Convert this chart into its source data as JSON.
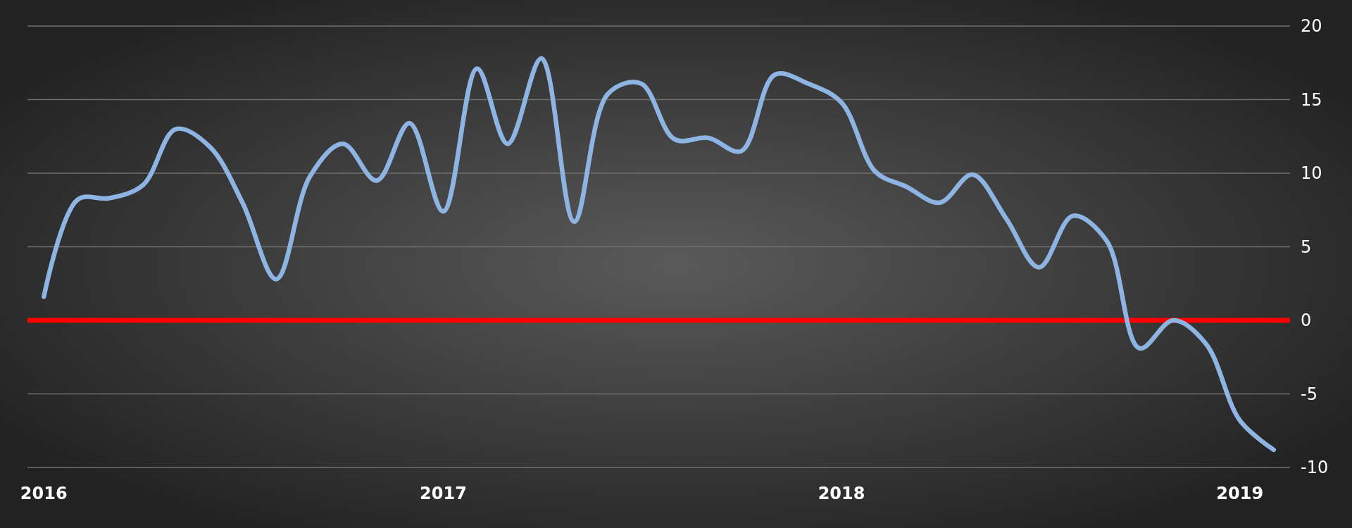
{
  "chart_data": {
    "type": "line",
    "x": [
      "2016-01",
      "2016-02",
      "2016-03",
      "2016-04",
      "2016-05",
      "2016-06",
      "2016-07",
      "2016-08",
      "2016-09",
      "2016-10",
      "2016-11",
      "2016-12",
      "2017-01",
      "2017-02",
      "2017-03",
      "2017-04",
      "2017-05",
      "2017-06",
      "2017-07",
      "2017-08",
      "2017-09",
      "2017-10",
      "2017-11",
      "2017-12",
      "2018-01",
      "2018-02",
      "2018-03",
      "2018-04",
      "2018-05",
      "2018-06",
      "2018-07",
      "2018-08",
      "2018-09",
      "2018-10",
      "2018-11",
      "2018-12",
      "2019-01",
      "2019-02"
    ],
    "series": [
      {
        "color": "#8db4e2",
        "values": [
          1.6,
          8.2,
          8.3,
          9.2,
          13.0,
          11.8,
          8.0,
          2.8,
          9.8,
          12.0,
          9.5,
          13.4,
          7.4,
          17.1,
          12.0,
          17.8,
          6.7,
          15.4,
          16.1,
          12.3,
          12.4,
          11.5,
          16.7,
          16.1,
          14.8,
          10.1,
          9.1,
          8.0,
          9.9,
          6.9,
          3.6,
          7.1,
          5.4,
          -1.9,
          0.0,
          -1.6,
          -6.8,
          -8.8
        ]
      }
    ],
    "xlim": [
      "2015-12-17",
      "2019-02-16"
    ],
    "xticks": [
      {
        "value": "2016-01",
        "label": "2016"
      },
      {
        "value": "2017-01",
        "label": "2017"
      },
      {
        "value": "2018-01",
        "label": "2018"
      },
      {
        "value": "2019-01",
        "label": "2019"
      }
    ],
    "ylim": [
      -10,
      20
    ],
    "yticks": [
      -10,
      -5,
      0,
      5,
      10,
      15,
      20
    ],
    "grid": "y",
    "marker": "none",
    "line_style": "solid",
    "ref_lines": [
      {
        "axis": "y",
        "value": 0,
        "color": "#ff0000"
      }
    ]
  }
}
